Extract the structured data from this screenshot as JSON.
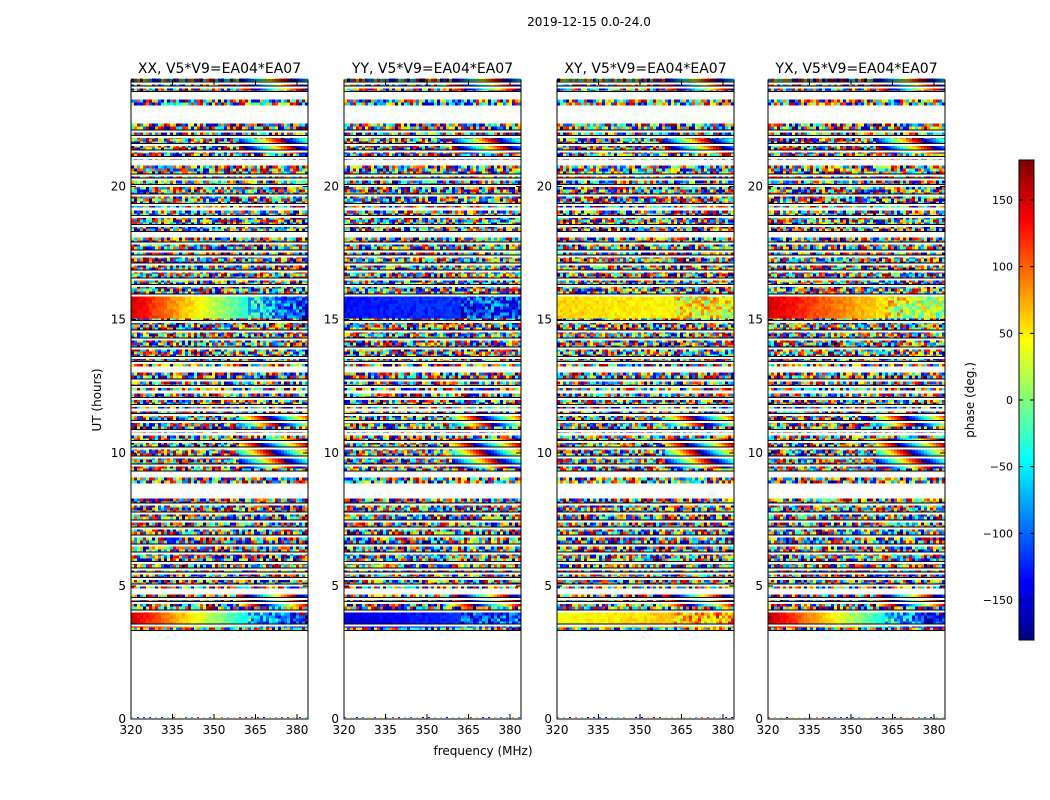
{
  "chart_data": {
    "type": "heatmap",
    "suptitle": "2019-12-15 0.0-24.0",
    "xlabel": "frequency (MHz)",
    "ylabel": "UT (hours)",
    "xlim": [
      320,
      384
    ],
    "ylim": [
      0,
      24
    ],
    "xticks": [
      320,
      335,
      350,
      365,
      380
    ],
    "yticks": [
      0,
      5,
      10,
      15,
      20
    ],
    "colorbar": {
      "label": "phase (deg.)",
      "range": [
        -180,
        180
      ],
      "ticks": [
        150,
        100,
        50,
        0,
        -50,
        -100,
        -150
      ],
      "tick_labels": [
        "150",
        "100",
        "50",
        "0",
        "−50",
        "−100",
        "−150"
      ],
      "colormap": "jet"
    },
    "panels": [
      {
        "title": "XX, V5*V9=EA04*EA07"
      },
      {
        "title": "YY, V5*V9=EA04*EA07"
      },
      {
        "title": "XY, V5*V9=EA04*EA07"
      },
      {
        "title": "YX, V5*V9=EA04*EA07"
      }
    ],
    "data_gaps_hours": [
      [
        0.05,
        3.1
      ],
      [
        3.15,
        3.3
      ],
      [
        22.3,
        23.0
      ],
      [
        23.25,
        23.45
      ],
      [
        20.7,
        21.0
      ],
      [
        9.0,
        9.25
      ],
      [
        8.25,
        8.8
      ],
      [
        4.65,
        4.85
      ],
      [
        12.95,
        13.15
      ],
      [
        10.55,
        10.75
      ],
      [
        12.2,
        12.3
      ],
      [
        11.55,
        11.65
      ],
      [
        19.05,
        19.15
      ],
      [
        18.05,
        18.2
      ]
    ],
    "smooth_band_phases_deg": {
      "XX": {
        "3.35-4.05": [
          150,
          -150
        ],
        "15.0-15.9": [
          150,
          -130
        ]
      },
      "YY": {
        "3.35-4.05": [
          -150,
          -100
        ],
        "15.0-15.9": [
          -130,
          -110
        ]
      },
      "XY": {
        "3.35-4.05": [
          40,
          80
        ],
        "15.0-15.9": [
          60,
          40
        ]
      },
      "YX": {
        "3.35-4.05": [
          160,
          -150
        ],
        "15.0-15.9": [
          150,
          0
        ]
      }
    }
  }
}
